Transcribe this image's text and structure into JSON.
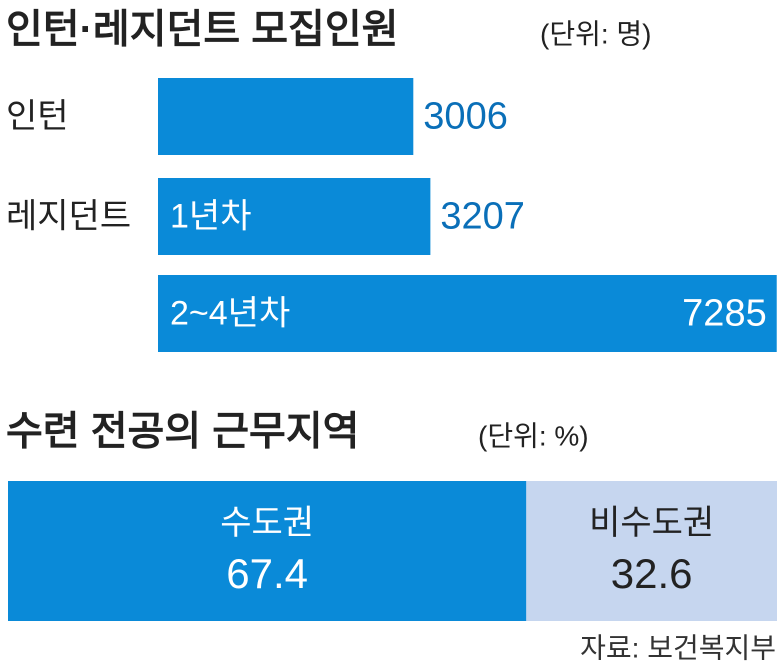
{
  "chart_data": [
    {
      "type": "hbar",
      "title": "인턴·레지던트 모집인원",
      "subtitle": "(단위: 명)",
      "categories": [
        "인턴",
        "레지던트",
        null
      ],
      "bar_labels": [
        null,
        "1년차",
        "2~4년차"
      ],
      "values": [
        3006,
        3207,
        7285
      ],
      "color": "#0a8ad8",
      "xlim": [
        0,
        7300
      ]
    },
    {
      "type": "stacked_hbar",
      "title": "수련 전공의 근무지역",
      "subtitle": "(단위: %)",
      "series": [
        {
          "name": "수도권",
          "color": "#0a8ad8",
          "values": [
            67.4
          ]
        },
        {
          "name": "비수도권",
          "color": "#c6d6ef",
          "values": [
            32.6
          ]
        }
      ],
      "xlim": [
        0,
        100
      ],
      "source": "자료: 보건복지부"
    }
  ]
}
